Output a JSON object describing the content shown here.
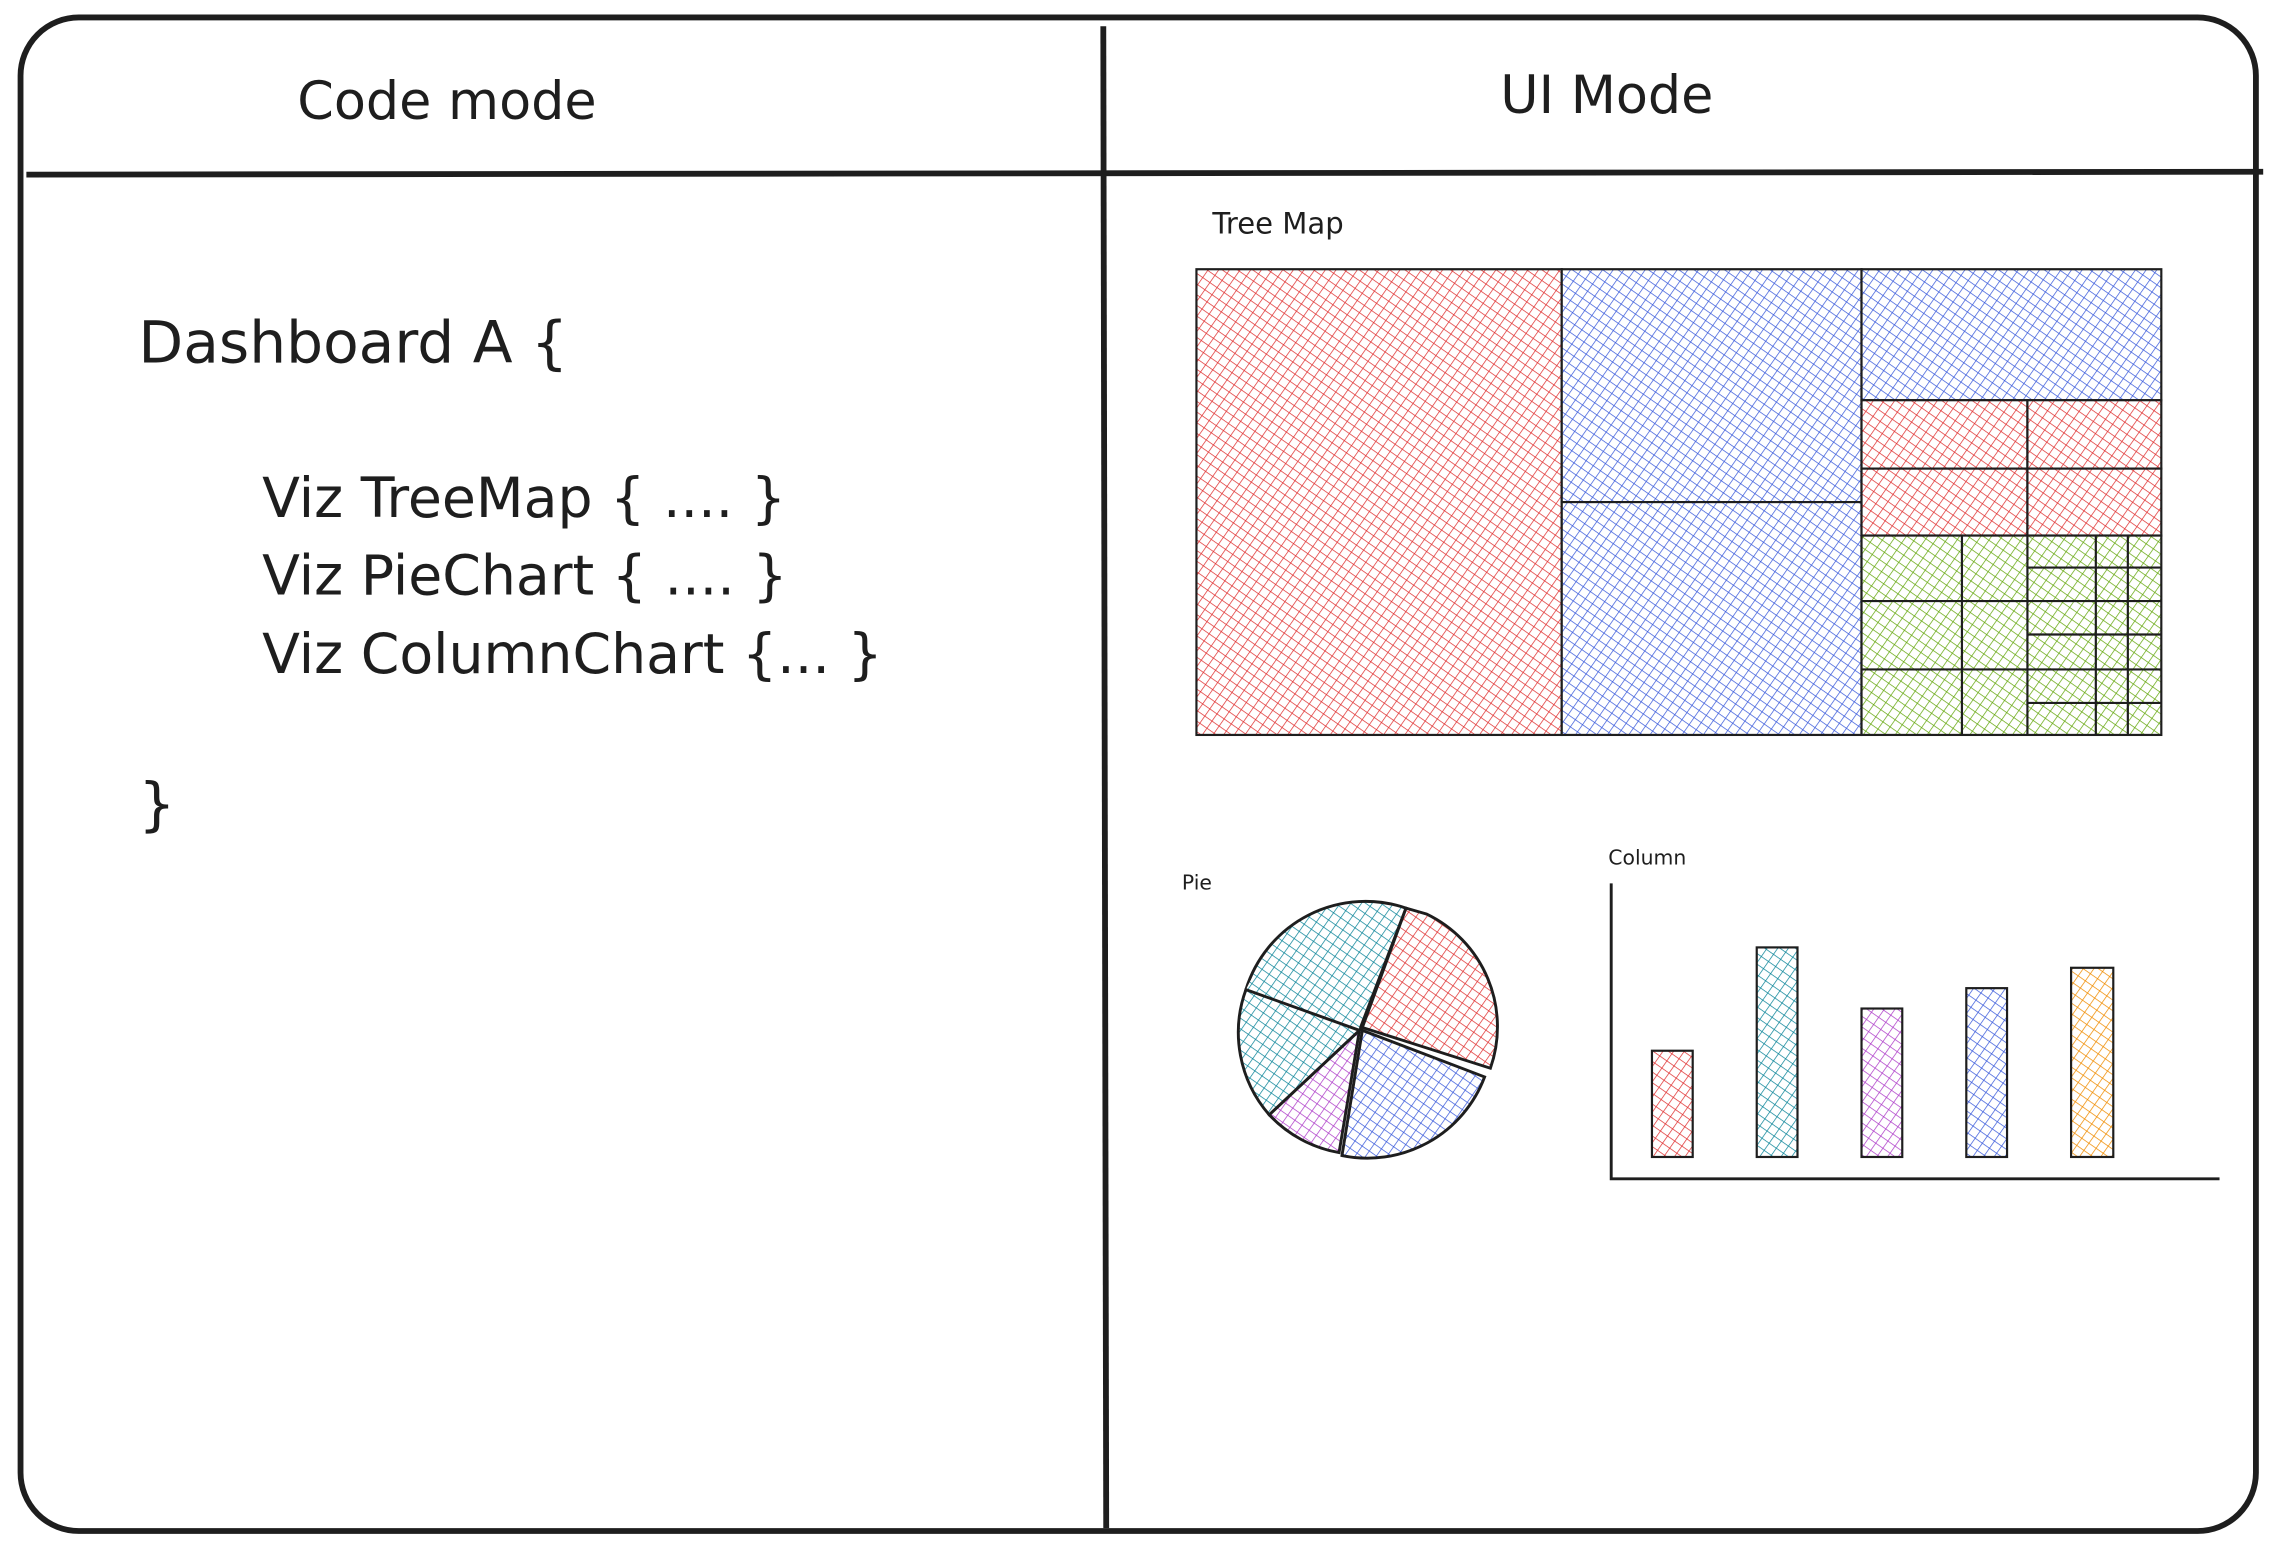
{
  "left_panel": {
    "title": "Code mode",
    "code": [
      "Dashboard A {",
      "Viz TreeMap { .... }",
      "Viz PieChart { .... }",
      "Viz ColumnChart {... }",
      "}"
    ]
  },
  "right_panel": {
    "title": "UI Mode",
    "treemap": {
      "title": "Tree Map"
    },
    "pie": {
      "title": "Pie"
    },
    "column": {
      "title": "Column"
    }
  }
}
